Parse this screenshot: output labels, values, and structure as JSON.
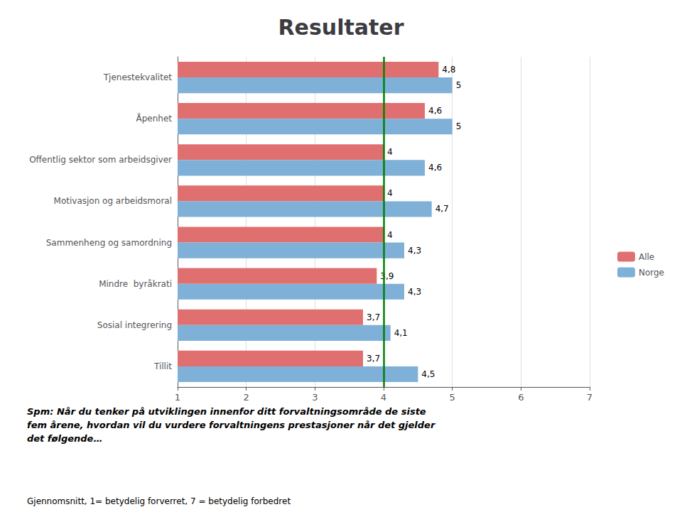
{
  "chart_data": {
    "type": "bar",
    "orientation": "horizontal",
    "title": "Resultater",
    "subtitle": "Spm: Når du tenker på utviklingen innenfor ditt forvaltningsområde de siste\nfem årene, hvordan vil du vurdere forvaltningens prestasjoner når det gjelder\ndet følgende…",
    "note": "Gjennomsnitt, 1= betydelig forverret, 7 = betydelig forbedret",
    "categories": [
      "Tjenestekvalitet",
      "Åpenhet",
      "Offentlig sektor som arbeidsgiver",
      "Motivasjon og arbeidsmoral",
      "Sammenheng og samordning",
      "Mindre  byråkrati",
      "Sosial integrering",
      "Tillit"
    ],
    "series": [
      {
        "name": "Alle",
        "color": "#E07070",
        "values": [
          4.8,
          4.6,
          4.0,
          4.0,
          4.0,
          3.9,
          3.7,
          3.7
        ],
        "value_labels": [
          "4,8",
          "4,6",
          "4",
          "4",
          "4",
          "3,9",
          "3,7",
          "3,7"
        ]
      },
      {
        "name": "Norge",
        "color": "#7EB0D8",
        "values": [
          5.0,
          5.0,
          4.6,
          4.7,
          4.3,
          4.3,
          4.1,
          4.5
        ],
        "value_labels": [
          "5",
          "5",
          "4,6",
          "4,7",
          "4,3",
          "4,3",
          "4,1",
          "4,5"
        ]
      }
    ],
    "xlim": [
      1,
      7
    ],
    "xticks": [
      1,
      2,
      3,
      4,
      5,
      6,
      7
    ],
    "vline": {
      "x": 4.0,
      "color": "#008000"
    },
    "grid": true,
    "legend": "right",
    "data_labels": true
  }
}
